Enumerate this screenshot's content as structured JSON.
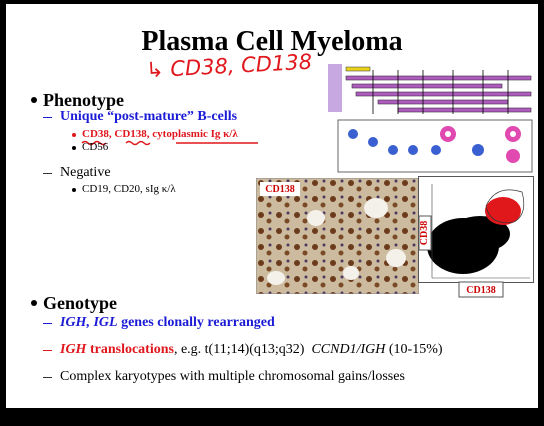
{
  "slide": {
    "title": "Plasma Cell Myeloma",
    "annotation": "↳ CD38, CD138",
    "phenotype": {
      "heading": "Phenotype",
      "subheading": "Unique “post-mature” B-cells",
      "positive": [
        "CD38, CD138, cytoplasmic Ig κ/λ",
        "CD56"
      ],
      "negative_heading": "Negative",
      "negative": [
        "CD19, CD20, sIg κ/λ"
      ]
    },
    "figures": {
      "micrograph_label": "CD138",
      "flow_y_label": "CD38",
      "flow_x_label": "CD138"
    },
    "genotype": {
      "heading": "Genotype",
      "items": [
        [
          "IGH, IGL",
          " genes clonally rearranged"
        ],
        [
          "IGH",
          " translocations",
          ", e.g. t(11;14)(q13;q32)  ",
          "CCND1/IGH",
          " (10-15%)"
        ],
        [
          "Complex karyotypes with multiple chromosomal gains/losses"
        ]
      ]
    }
  }
}
